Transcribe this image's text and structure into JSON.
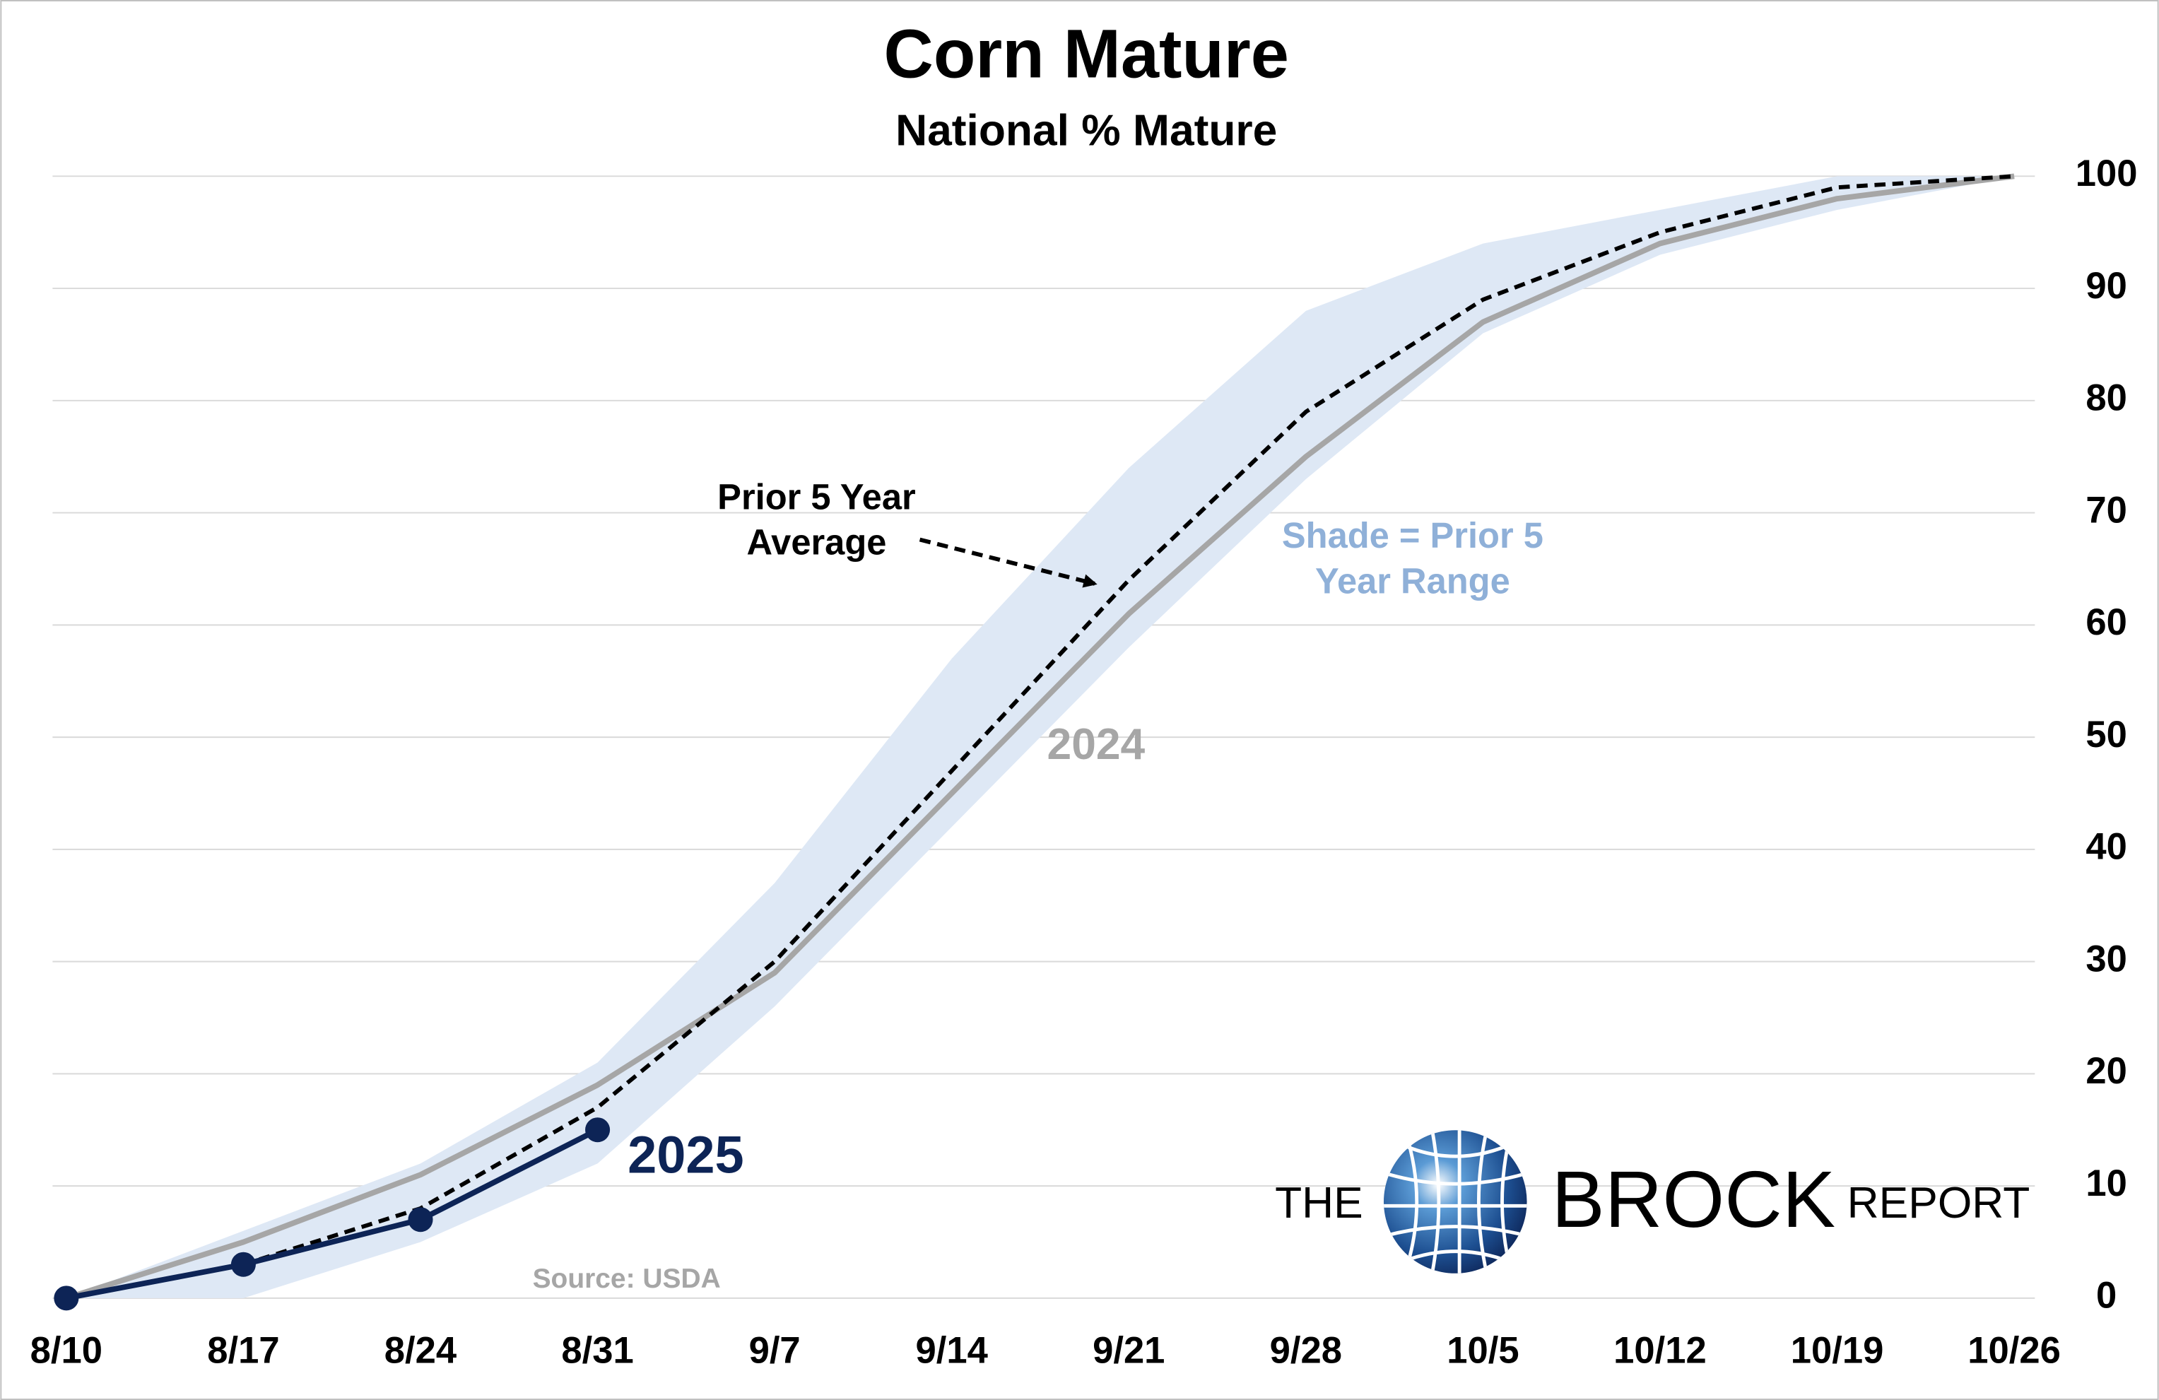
{
  "chart_data": {
    "type": "line",
    "title": "Corn Mature",
    "subtitle": "National % Mature",
    "categories": [
      "8/10",
      "8/17",
      "8/24",
      "8/31",
      "9/7",
      "9/14",
      "9/21",
      "9/28",
      "10/5",
      "10/12",
      "10/19",
      "10/26"
    ],
    "series": [
      {
        "name": "2024",
        "color": "#a6a6a6",
        "values": [
          0,
          5,
          11,
          19,
          29,
          45,
          61,
          75,
          87,
          94,
          98,
          100
        ]
      },
      {
        "name_lines": [
          "Prior 5 Year",
          "Average"
        ],
        "color": "#000000",
        "dashed": true,
        "values": [
          0,
          3,
          8,
          17,
          30,
          47,
          64,
          79,
          89,
          95,
          99,
          100
        ]
      },
      {
        "name": "2025",
        "color": "#0d2456",
        "markers": true,
        "values": [
          0,
          3,
          7,
          15,
          null,
          null,
          null,
          null,
          null,
          null,
          null,
          null
        ]
      }
    ],
    "band": {
      "name_lines": [
        "Shade = Prior 5",
        "Year Range"
      ],
      "color": "#dee8f5",
      "label_color": "#8fb0d8",
      "upper": [
        0,
        6,
        12,
        21,
        37,
        57,
        74,
        88,
        94,
        97,
        100,
        100
      ],
      "lower": [
        0,
        0,
        5,
        12,
        26,
        42,
        58,
        73,
        86,
        93,
        97,
        100
      ]
    },
    "ylim": [
      0,
      100
    ],
    "yticks": [
      0,
      10,
      20,
      30,
      40,
      50,
      60,
      70,
      80,
      90,
      100
    ],
    "y_axis_side": "right",
    "grid": true,
    "source": "Source: USDA",
    "logo": [
      "THE",
      "BROCK",
      "REPORT"
    ]
  }
}
